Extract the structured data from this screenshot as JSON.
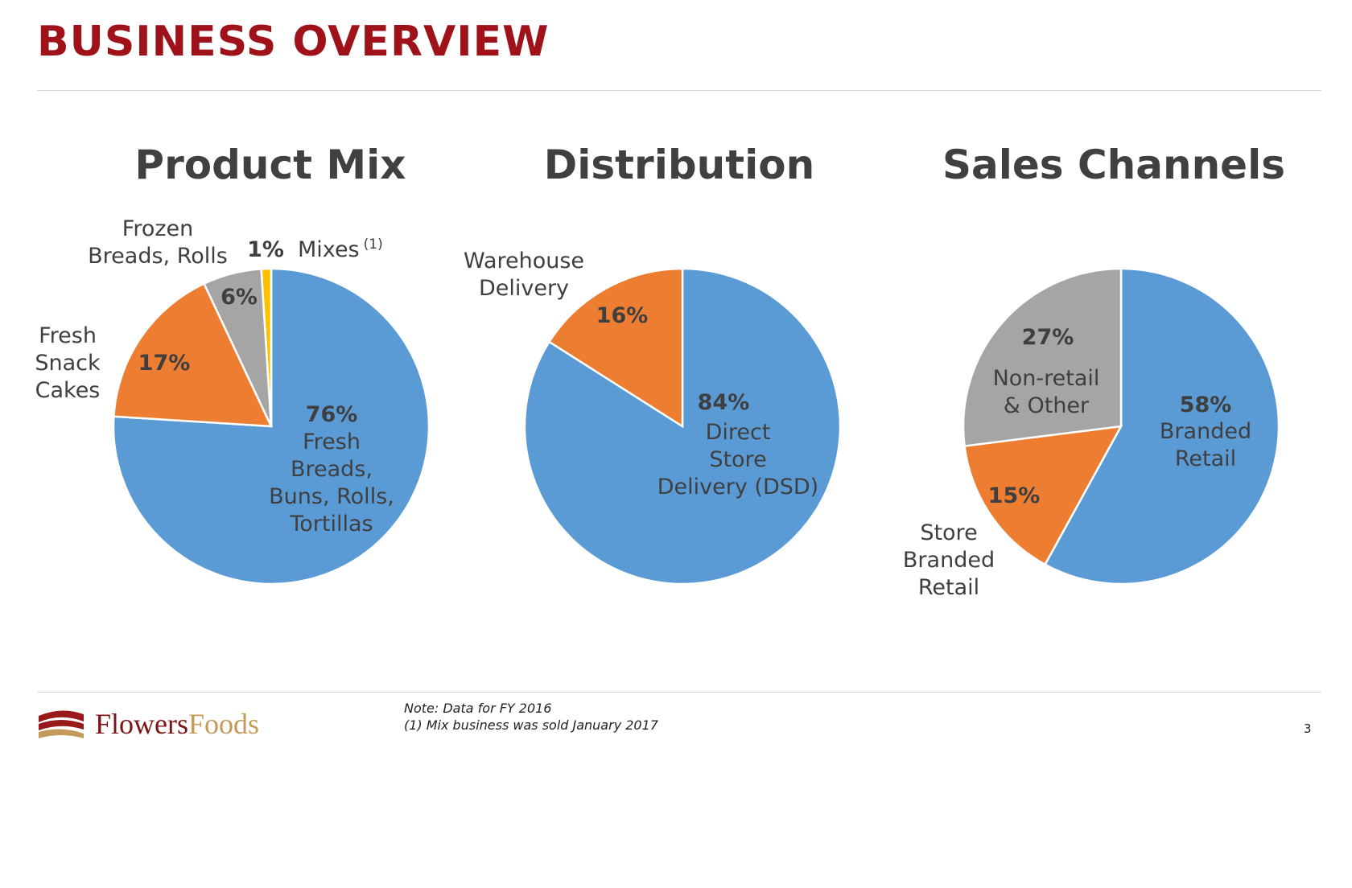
{
  "page": {
    "title": "BUSINESS OVERVIEW",
    "notes": [
      "Note: Data for FY 2016",
      "(1) Mix business was sold January 2017"
    ],
    "page_number": "3",
    "logo": {
      "text_part1": "Flowers",
      "text_part2": "Foods"
    },
    "colors": {
      "title": "#a0121a",
      "blue": "#5b9bd5",
      "orange": "#ed7d31",
      "gray": "#a5a5a5",
      "yellow": "#ffc000"
    }
  },
  "chart_data": [
    {
      "type": "pie",
      "title": "Product Mix",
      "slices": [
        {
          "pct": "76%",
          "value": 76,
          "color": "#5b9bd5",
          "label_lines": [
            "Fresh",
            "Breads,",
            "Buns, Rolls,",
            "Tortillas"
          ],
          "sup": ""
        },
        {
          "pct": "17%",
          "value": 17,
          "color": "#ed7d31",
          "label_lines": [
            "Fresh",
            "Snack",
            "Cakes"
          ],
          "sup": ""
        },
        {
          "pct": "6%",
          "value": 6,
          "color": "#a5a5a5",
          "label_lines": [
            "Frozen",
            "Breads, Rolls"
          ],
          "sup": ""
        },
        {
          "pct": "1%",
          "value": 1,
          "color": "#ffc000",
          "label_lines": [
            "Mixes"
          ],
          "sup": "(1)"
        }
      ]
    },
    {
      "type": "pie",
      "title": "Distribution",
      "slices": [
        {
          "pct": "84%",
          "value": 84,
          "color": "#5b9bd5",
          "label_lines": [
            "Direct",
            "Store",
            "Delivery (DSD)"
          ],
          "sup": ""
        },
        {
          "pct": "16%",
          "value": 16,
          "color": "#ed7d31",
          "label_lines": [
            "Warehouse",
            "Delivery"
          ],
          "sup": ""
        }
      ]
    },
    {
      "type": "pie",
      "title": "Sales Channels",
      "slices": [
        {
          "pct": "58%",
          "value": 58,
          "color": "#5b9bd5",
          "label_lines": [
            "Branded",
            "Retail"
          ],
          "sup": ""
        },
        {
          "pct": "15%",
          "value": 15,
          "color": "#ed7d31",
          "label_lines": [
            "Store",
            "Branded",
            "Retail"
          ],
          "sup": ""
        },
        {
          "pct": "27%",
          "value": 27,
          "color": "#a5a5a5",
          "label_lines": [
            "Non-retail",
            "& Other"
          ],
          "sup": ""
        }
      ]
    }
  ]
}
